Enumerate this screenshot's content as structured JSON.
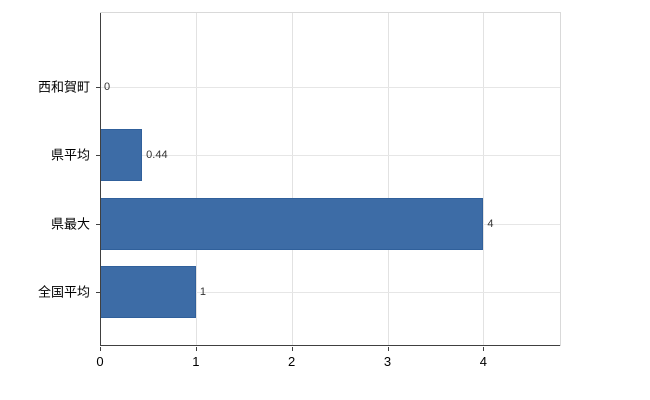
{
  "chart_data": {
    "type": "bar",
    "orientation": "horizontal",
    "title": "",
    "categories": [
      "西和賀町",
      "県平均",
      "県最大",
      "全国平均"
    ],
    "values": [
      0,
      0.44,
      4,
      1
    ],
    "value_labels": [
      "0",
      "0.44",
      "4",
      "1"
    ],
    "x_ticks": [
      0,
      1,
      2,
      3,
      4
    ],
    "x_tick_labels": [
      "0",
      "1",
      "2",
      "3",
      "4"
    ],
    "xlim": [
      0,
      4.8
    ],
    "bar_color": "#3d6ca6",
    "grid": true,
    "legend": "none"
  }
}
